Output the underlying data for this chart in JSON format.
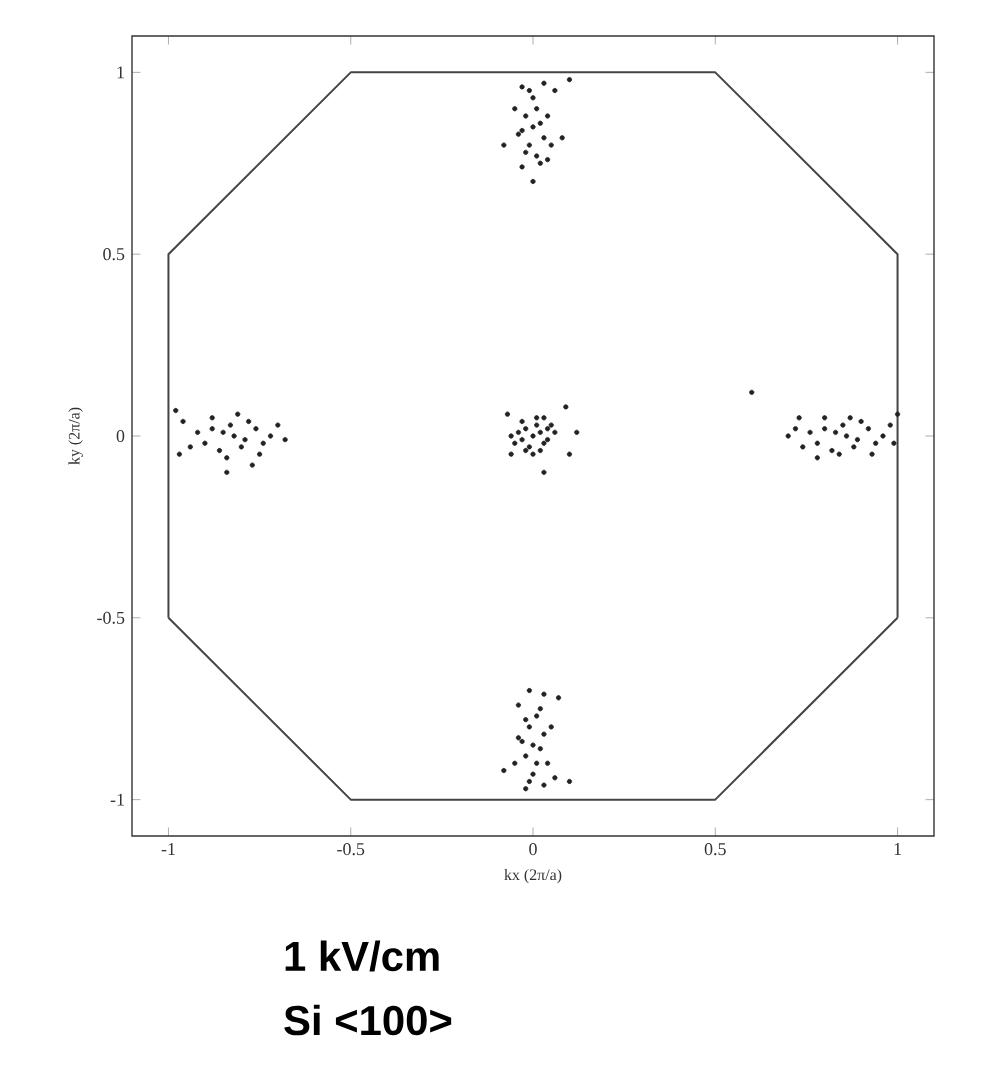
{
  "chart_data": {
    "type": "scatter",
    "xlabel": "kx (2π/a)",
    "ylabel": "ky (2π/a)",
    "xlim": [
      -1.1,
      1.1
    ],
    "ylim": [
      -1.1,
      1.1
    ],
    "xticks": [
      -1,
      -0.5,
      0,
      0.5,
      1
    ],
    "yticks": [
      -1,
      -0.5,
      0,
      0.5,
      1
    ],
    "grid": false,
    "annotations": [
      "1 kV/cm",
      "Si <100>"
    ],
    "series": [
      {
        "type": "line",
        "color": "#444444",
        "marker": "none",
        "line_style": "solid",
        "x": [
          -1,
          -1,
          -0.5,
          0.5,
          1,
          1
        ],
        "values": [
          -0.5,
          0.5,
          1,
          1,
          0.5,
          -0.5
        ]
      },
      {
        "type": "line",
        "color": "#444444",
        "marker": "none",
        "line_style": "solid",
        "x": [
          -1,
          -0.5,
          0.5,
          1
        ],
        "values": [
          -0.5,
          -1,
          -1,
          -0.5
        ]
      },
      {
        "color": "#222222",
        "marker": "circle",
        "x": [
          0,
          0.02,
          -0.02,
          0.03,
          -0.03,
          0.01,
          -0.01,
          0.04,
          -0.04,
          0.02,
          -0.02,
          0.04,
          -0.05,
          0.05,
          -0.03,
          0.01,
          0.06,
          -0.06,
          0,
          0.03,
          0.1,
          0.12,
          0.09,
          0.03,
          -0.07,
          -0.06,
          0,
          0.01,
          -0.01,
          0.02,
          -0.02,
          0.03,
          -0.03,
          0,
          0.01,
          -0.01,
          0.02,
          -0.02,
          0.04,
          -0.04,
          0.05,
          -0.05,
          0.03,
          -0.03,
          0.06,
          0,
          -0.03,
          0.04,
          0.08,
          -0.08,
          0.1,
          0,
          0.01,
          -0.01,
          0.02,
          -0.02,
          0.03,
          -0.03,
          0,
          0.01,
          -0.01,
          0.02,
          -0.02,
          0.04,
          -0.04,
          0.05,
          -0.05,
          0.03,
          -0.02,
          0.06,
          -0.01,
          0.03,
          -0.04,
          0.07,
          -0.08,
          0.1,
          -0.82,
          -0.85,
          -0.79,
          -0.88,
          -0.76,
          -0.9,
          -0.74,
          -0.83,
          -0.8,
          -0.86,
          -0.78,
          -0.92,
          -0.72,
          -0.94,
          -0.7,
          -0.88,
          -0.81,
          -0.84,
          -0.75,
          -0.96,
          -0.68,
          -0.97,
          -0.77,
          -0.84,
          -0.98,
          0.86,
          0.83,
          0.89,
          0.8,
          0.92,
          0.78,
          0.94,
          0.85,
          0.88,
          0.82,
          0.9,
          0.76,
          0.96,
          0.74,
          0.98,
          0.8,
          0.87,
          0.84,
          0.93,
          0.72,
          0.99,
          0.7,
          1.0,
          0.78,
          0.73,
          0.6
        ],
        "values": [
          0,
          0.01,
          0.02,
          -0.02,
          -0.01,
          0.03,
          -0.03,
          0.02,
          0.01,
          -0.04,
          -0.04,
          -0.01,
          -0.02,
          0.03,
          0.04,
          0.05,
          0.01,
          0,
          -0.05,
          0.05,
          -0.05,
          0.01,
          0.08,
          -0.1,
          0.06,
          -0.05,
          0.85,
          0.9,
          0.8,
          0.86,
          0.88,
          0.82,
          0.84,
          0.93,
          0.77,
          0.95,
          0.75,
          0.78,
          0.88,
          0.83,
          0.8,
          0.9,
          0.97,
          0.96,
          0.95,
          0.7,
          0.74,
          0.76,
          0.82,
          0.8,
          0.98,
          -0.85,
          -0.9,
          -0.8,
          -0.86,
          -0.88,
          -0.82,
          -0.84,
          -0.93,
          -0.77,
          -0.95,
          -0.75,
          -0.78,
          -0.9,
          -0.83,
          -0.8,
          -0.9,
          -0.96,
          -0.97,
          -0.94,
          -0.7,
          -0.71,
          -0.74,
          -0.72,
          -0.92,
          -0.95,
          0,
          0.01,
          -0.01,
          0.02,
          0.02,
          -0.02,
          -0.02,
          0.03,
          -0.03,
          -0.04,
          0.04,
          0.01,
          0,
          -0.03,
          0.03,
          0.05,
          0.06,
          -0.06,
          -0.05,
          0.04,
          -0.01,
          -0.05,
          -0.08,
          -0.1,
          0.07,
          0,
          0.01,
          -0.01,
          0.02,
          0.02,
          -0.02,
          -0.02,
          0.03,
          -0.03,
          -0.04,
          0.04,
          0.01,
          0,
          -0.03,
          0.03,
          0.05,
          0.05,
          -0.05,
          -0.05,
          0.02,
          -0.02,
          0,
          0.06,
          -0.06,
          0.05,
          0.12
        ]
      }
    ]
  }
}
